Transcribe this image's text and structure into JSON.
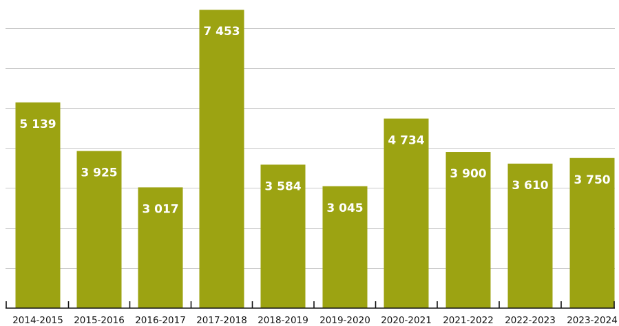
{
  "chart_data": {
    "type": "bar",
    "categories": [
      "2014-2015",
      "2015-2016",
      "2016-2017",
      "2017-2018",
      "2018-2019",
      "2019-2020",
      "2020-2021",
      "2021-2022",
      "2022-2023",
      "2023-2024"
    ],
    "values": [
      5139,
      3925,
      3017,
      7453,
      3584,
      3045,
      4734,
      3900,
      3610,
      3750
    ],
    "value_labels": [
      "5 139",
      "3 925",
      "3 017",
      "7 453",
      "3 584",
      "3 045",
      "4 734",
      "3 900",
      "3 610",
      "3 750"
    ],
    "ylim": [
      0,
      7500
    ],
    "y_gridlines": [
      1000,
      2000,
      3000,
      4000,
      5000,
      6000,
      7000
    ],
    "grid": true,
    "legend": "none",
    "bar_color": "#9ca312",
    "label_color": "#ffffff"
  }
}
